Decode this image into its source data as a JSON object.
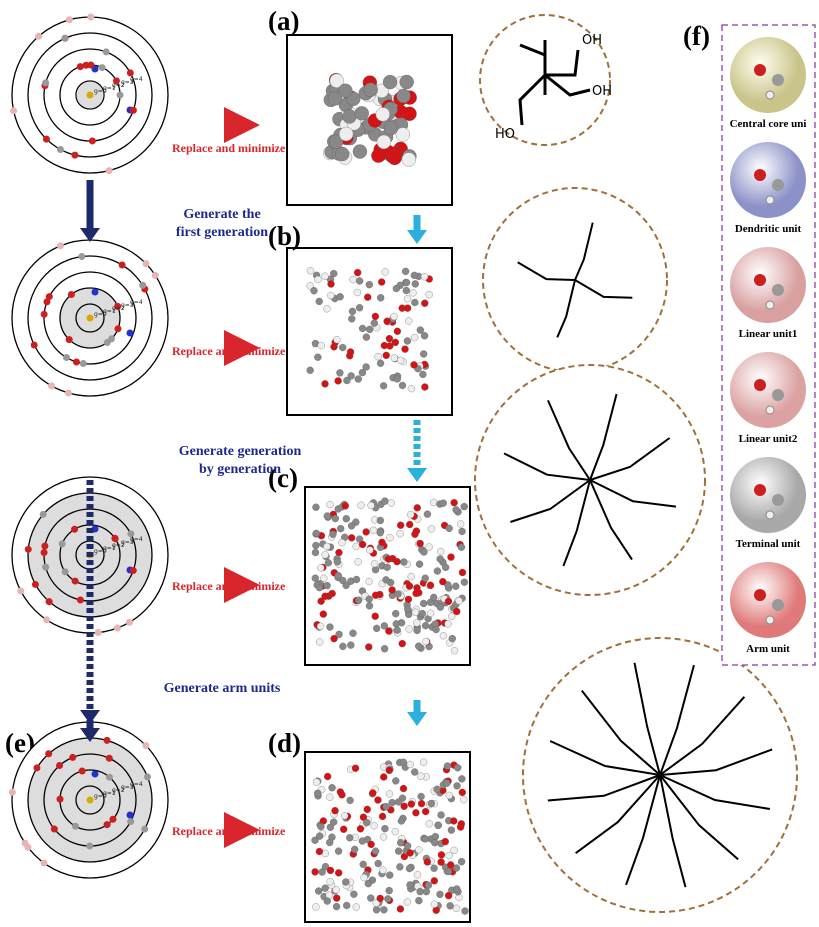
{
  "panel_labels": [
    "(a)",
    "(b)",
    "(c)",
    "(d)",
    "(e)",
    "(f)"
  ],
  "replace_labels": [
    "Replace and minimize",
    "Replace and minimize",
    "Replace and minimize",
    "Replace and minimize"
  ],
  "steps": {
    "first_generation": [
      "Generate the",
      "first generation"
    ],
    "by_generation": [
      "Generate generation",
      "by generation"
    ],
    "arm_units": "Generate arm units"
  },
  "generation_labels": [
    "g=0",
    "g=1",
    "g=2",
    "g=3",
    "g=4"
  ],
  "structure_a_labels": [
    "OH",
    "HO",
    "OH"
  ],
  "units": [
    "Central core uni",
    "Dendritic unit",
    "Linear unit1",
    "Linear unit2",
    "Terminal unit",
    "Arm unit"
  ]
}
